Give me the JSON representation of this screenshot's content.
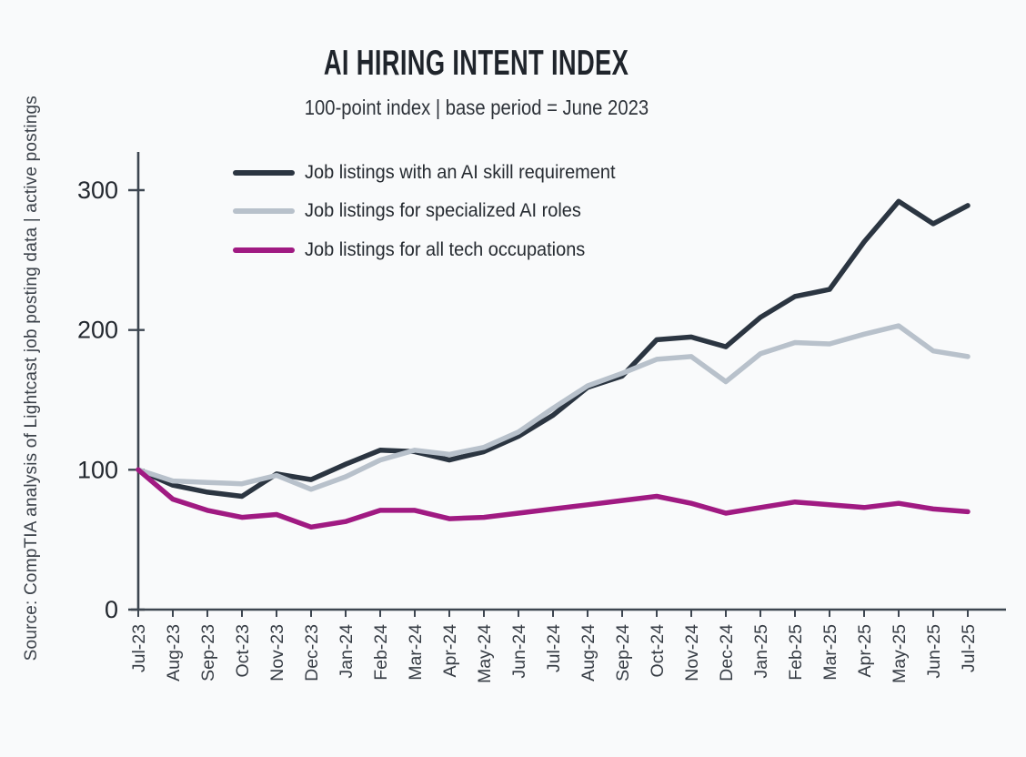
{
  "title": {
    "text": "AI HIRING INTENT INDEX"
  },
  "subtitle": {
    "text": "100-point index | base period = June 2023"
  },
  "source_note": {
    "text": "Source: CompTIA analysis of Lightcast job posting data | active postings"
  },
  "legend": {
    "items": [
      {
        "label": "Job listings with an AI skill requirement",
        "color": "#2b3541"
      },
      {
        "label": "Job listings for specialized AI roles",
        "color": "#b8c1cb"
      },
      {
        "label": "Job listings for all tech occupations",
        "color": "#a01a82"
      }
    ]
  },
  "chart_data": {
    "type": "line",
    "title": "AI HIRING INTENT INDEX",
    "subtitle": "100-point index | base period = June 2023",
    "source": "Source: CompTIA analysis of Lightcast job posting data | active postings",
    "x": [
      "Jul-23",
      "Aug-23",
      "Sep-23",
      "Oct-23",
      "Nov-23",
      "Dec-23",
      "Jan-24",
      "Feb-24",
      "Mar-24",
      "Apr-24",
      "May-24",
      "Jun-24",
      "Jul-24",
      "Aug-24",
      "Sep-24",
      "Oct-24",
      "Nov-24",
      "Dec-24",
      "Jan-25",
      "Feb-25",
      "Mar-25",
      "Apr-25",
      "May-25",
      "Jun-25",
      "Jul-25"
    ],
    "series": [
      {
        "name": "Job listings with an AI skill requirement",
        "color": "#2b3541",
        "values": [
          100,
          89,
          84,
          81,
          97,
          93,
          104,
          114,
          113,
          107,
          113,
          124,
          139,
          159,
          167,
          193,
          195,
          188,
          209,
          224,
          229,
          263,
          292,
          276,
          289
        ]
      },
      {
        "name": "Job listings for specialized AI roles",
        "color": "#b8c1cb",
        "values": [
          100,
          92,
          91,
          90,
          96,
          86,
          95,
          107,
          114,
          111,
          116,
          127,
          144,
          160,
          169,
          179,
          181,
          163,
          183,
          191,
          190,
          197,
          203,
          185,
          181
        ]
      },
      {
        "name": "Job listings for all tech occupations",
        "color": "#a01a82",
        "values": [
          100,
          79,
          71,
          66,
          68,
          59,
          63,
          71,
          71,
          65,
          66,
          69,
          72,
          75,
          78,
          81,
          76,
          69,
          73,
          77,
          75,
          73,
          76,
          72,
          70
        ]
      }
    ],
    "y_ticks": [
      0,
      100,
      200,
      300
    ],
    "ylim": [
      0,
      327
    ],
    "xlabel": "",
    "ylabel": "",
    "grid": false,
    "legend_position": "upper-left-inside"
  }
}
